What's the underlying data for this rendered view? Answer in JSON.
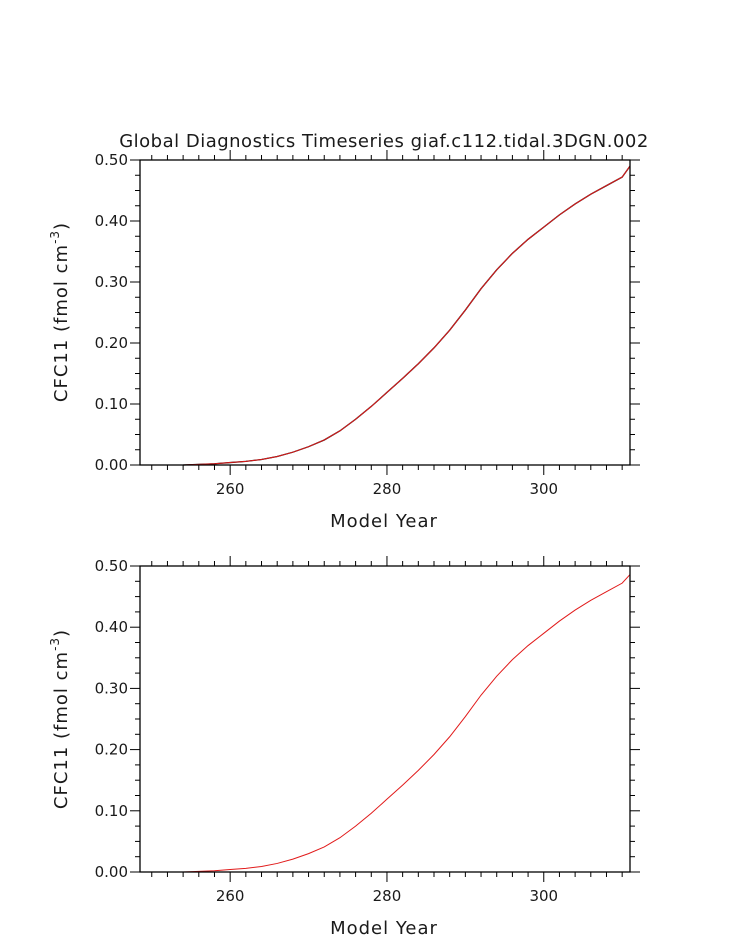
{
  "title": "Global Diagnostics Timeseries giaf.c112.tidal.3DGN.002",
  "chart_data": [
    {
      "type": "line",
      "xlabel": "Model Year",
      "ylabel_main": "CFC11 (fmol cm",
      "ylabel_sup": "-3",
      "ylabel_close": ")",
      "xlim": [
        248.5,
        311
      ],
      "ylim": [
        0,
        0.5
      ],
      "xticks": [
        260,
        280,
        300
      ],
      "yticks": [
        "0.00",
        "0.10",
        "0.20",
        "0.30",
        "0.40",
        "0.50"
      ],
      "series": [
        {
          "color": "#000000",
          "width": 1.3,
          "x": [
            254,
            256,
            258,
            260,
            262,
            264,
            266,
            268,
            270,
            272,
            274,
            276,
            278,
            280,
            282,
            284,
            286,
            288,
            290,
            292,
            294,
            296,
            298,
            300,
            302,
            304,
            306,
            308,
            310,
            311
          ],
          "values": [
            0.0,
            0.001,
            0.002,
            0.004,
            0.006,
            0.009,
            0.014,
            0.021,
            0.03,
            0.041,
            0.056,
            0.075,
            0.096,
            0.119,
            0.142,
            0.166,
            0.192,
            0.221,
            0.254,
            0.289,
            0.32,
            0.347,
            0.37,
            0.39,
            0.41,
            0.428,
            0.444,
            0.458,
            0.472,
            0.49
          ]
        },
        {
          "color": "#e11a1a",
          "width": 1.0,
          "x": [
            254,
            256,
            258,
            260,
            262,
            264,
            266,
            268,
            270,
            272,
            274,
            276,
            278,
            280,
            282,
            284,
            286,
            288,
            290,
            292,
            294,
            296,
            298,
            300,
            302,
            304,
            306,
            308,
            310,
            311
          ],
          "values": [
            0.0,
            0.001,
            0.002,
            0.004,
            0.006,
            0.009,
            0.014,
            0.021,
            0.03,
            0.041,
            0.056,
            0.075,
            0.096,
            0.119,
            0.142,
            0.166,
            0.192,
            0.221,
            0.254,
            0.289,
            0.32,
            0.347,
            0.37,
            0.39,
            0.41,
            0.428,
            0.444,
            0.458,
            0.472,
            0.49
          ]
        }
      ]
    },
    {
      "type": "line",
      "xlabel": "Model Year",
      "ylabel_main": "CFC11 (fmol cm",
      "ylabel_sup": "-3",
      "ylabel_close": ")",
      "xlim": [
        248.5,
        311
      ],
      "ylim": [
        0,
        0.5
      ],
      "xticks": [
        260,
        280,
        300
      ],
      "yticks": [
        "0.00",
        "0.10",
        "0.20",
        "0.30",
        "0.40",
        "0.50"
      ],
      "series": [
        {
          "color": "#e11a1a",
          "width": 1.0,
          "x": [
            254,
            256,
            258,
            260,
            262,
            264,
            266,
            268,
            270,
            272,
            274,
            276,
            278,
            280,
            282,
            284,
            286,
            288,
            290,
            292,
            294,
            296,
            298,
            300,
            302,
            304,
            306,
            308,
            310,
            311
          ],
          "values": [
            0.0,
            0.001,
            0.002,
            0.004,
            0.006,
            0.009,
            0.014,
            0.021,
            0.03,
            0.041,
            0.056,
            0.075,
            0.096,
            0.119,
            0.142,
            0.166,
            0.192,
            0.221,
            0.254,
            0.289,
            0.32,
            0.347,
            0.37,
            0.39,
            0.41,
            0.428,
            0.444,
            0.458,
            0.472,
            0.486
          ]
        }
      ]
    }
  ]
}
